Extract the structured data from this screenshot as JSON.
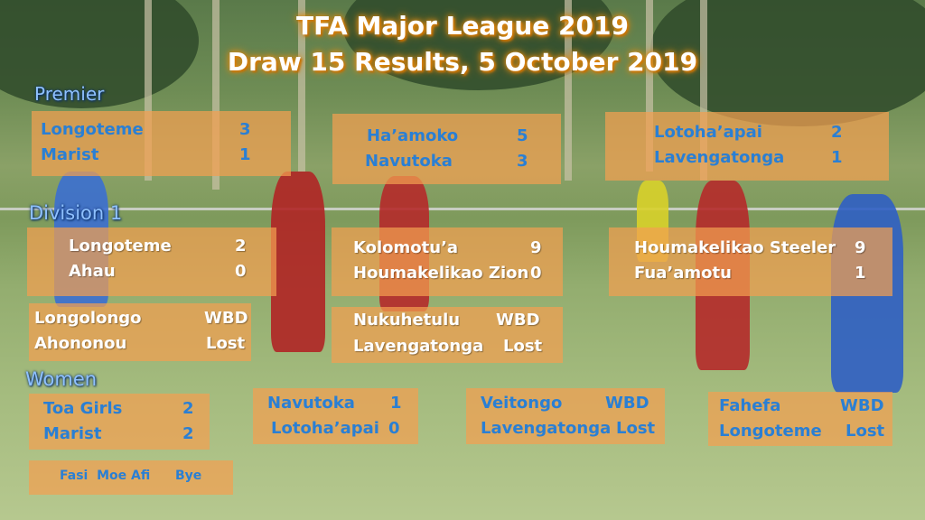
{
  "title": {
    "line1": "TFA Major League 2019",
    "line2": "Draw 15 Results,   5 October 2019"
  },
  "sections": {
    "premier": "Premier",
    "division1": "Division 1",
    "women": "Women"
  },
  "premier": [
    {
      "team1": "Longoteme",
      "score1": "3",
      "team2": "Marist",
      "score2": "1"
    },
    {
      "team1": "Ha’amoko",
      "score1": "5",
      "team2": "Navutoka",
      "score2": "3"
    },
    {
      "team1": "Lotoha’apai",
      "score1": "2",
      "team2": "Lavengatonga",
      "score2": "1"
    }
  ],
  "division1": [
    {
      "team1": "Longoteme",
      "score1": "2",
      "team2": "Ahau",
      "score2": "0"
    },
    {
      "team1": "Kolomotu’a",
      "score1": "9",
      "team2": "Houmakelikao Zion",
      "score2": "0"
    },
    {
      "team1": "Houmakelikao Steeler",
      "score1": "9",
      "team2": "Fua’amotu",
      "score2": "1"
    },
    {
      "team1": "Longolongo",
      "score1": "WBD",
      "team2": "Ahononou",
      "score2": "Lost"
    },
    {
      "team1": "Nukuhetulu",
      "score1": "WBD",
      "team2": "Lavengatonga",
      "score2": "Lost"
    }
  ],
  "women": [
    {
      "team1": "Toa Girls",
      "score1": "2",
      "team2": "Marist",
      "score2": "2"
    },
    {
      "team1": "Navutoka",
      "score1": "1",
      "team2": "Lotoha’apai",
      "score2": "0"
    },
    {
      "team1": "Veitongo",
      "score1": "WBD",
      "team2": "Lavengatonga",
      "score2": "Lost"
    },
    {
      "team1": "Fahefa",
      "score1": "WBD",
      "team2": "Longoteme",
      "score2": "Lost"
    }
  ],
  "bye": {
    "team": "Fasi  Moe Afi",
    "label": "Bye"
  },
  "colors": {
    "box": "#f2a050",
    "blue_text": "#2a7fd4",
    "title_glow": "#e28a10",
    "section_text": "#8fc1ff"
  }
}
